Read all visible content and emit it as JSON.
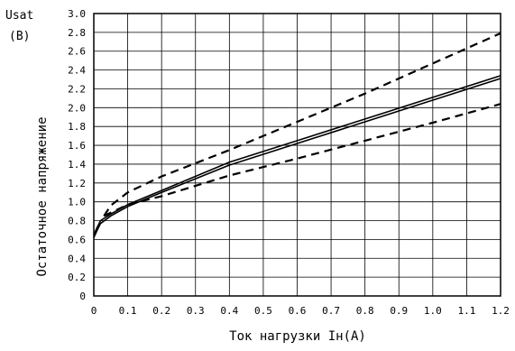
{
  "chart_data": {
    "type": "line",
    "xlabel": "Ток нагрузки Iн(А)",
    "ylabel": "Остаточное напряжение",
    "y_unit_top": "Usat",
    "y_unit_bottom": "(В)",
    "xlim": [
      0,
      1.2
    ],
    "ylim": [
      0,
      3.0
    ],
    "grid": true,
    "x_ticks": [
      "0",
      "0.1",
      "0.2",
      "0.3",
      "0.4",
      "0.5",
      "0.6",
      "0.7",
      "0.8",
      "0.9",
      "1.0",
      "1.1",
      "1.2"
    ],
    "y_ticks": [
      "0",
      "0.2",
      "0.4",
      "0.6",
      "0.8",
      "1.0",
      "1.2",
      "1.4",
      "1.6",
      "1.8",
      "2.0",
      "2.2",
      "2.4",
      "2.6",
      "2.8",
      "3.0"
    ],
    "series": [
      {
        "style": "dashed",
        "x": [
          0.03,
          0.05,
          0.1,
          0.2,
          0.4,
          0.6,
          0.8,
          1.0,
          1.2
        ],
        "y": [
          0.85,
          0.96,
          1.1,
          1.27,
          1.55,
          1.85,
          2.15,
          2.47,
          2.79
        ]
      },
      {
        "style": "solid",
        "x": [
          0,
          0.01,
          0.02,
          0.05,
          0.1,
          0.2,
          0.4,
          0.6,
          0.8,
          1.0,
          1.2
        ],
        "y": [
          0.62,
          0.7,
          0.77,
          0.85,
          0.95,
          1.1,
          1.39,
          1.62,
          1.85,
          2.08,
          2.31
        ]
      },
      {
        "style": "solid",
        "x": [
          0,
          0.01,
          0.02,
          0.05,
          0.1,
          0.2,
          0.4,
          0.6,
          0.8,
          1.0,
          1.2
        ],
        "y": [
          0.65,
          0.73,
          0.8,
          0.87,
          0.97,
          1.12,
          1.42,
          1.65,
          1.88,
          2.11,
          2.34
        ]
      },
      {
        "style": "dashed",
        "x": [
          0.03,
          0.1,
          0.2,
          0.4,
          0.6,
          0.8,
          1.0,
          1.2
        ],
        "y": [
          0.85,
          0.97,
          1.06,
          1.28,
          1.46,
          1.65,
          1.84,
          2.04
        ]
      }
    ]
  }
}
